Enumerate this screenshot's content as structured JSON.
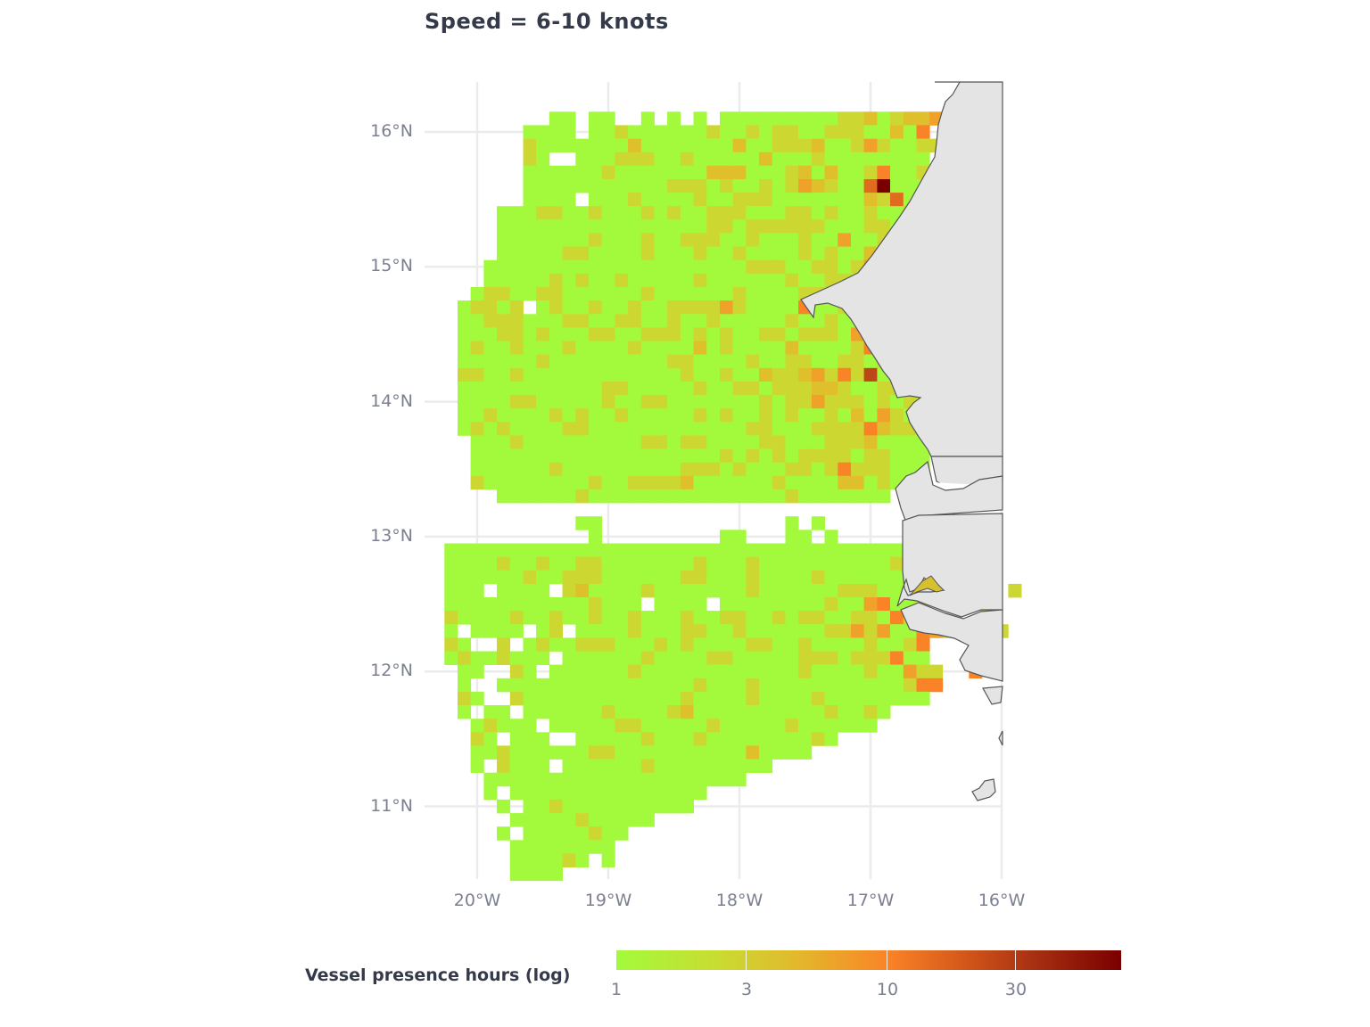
{
  "chart_data": {
    "type": "heatmap",
    "title": "Speed = 6-10 knots",
    "xlabel": "",
    "ylabel": "",
    "x_ticks": [
      "20°W",
      "19°W",
      "18°W",
      "17°W",
      "16°W"
    ],
    "y_ticks": [
      "16°N",
      "15°N",
      "14°N",
      "13°N",
      "12°N",
      "11°N"
    ],
    "xlim": [
      -20.4,
      -16.0
    ],
    "ylim": [
      10.4,
      16.4
    ],
    "cell_size_deg": 0.1,
    "grid": true,
    "legend": {
      "title": "Vessel presence hours (log)",
      "scale": "log",
      "breaks": [
        "1",
        "3",
        "10",
        "30"
      ],
      "range": [
        1,
        60
      ],
      "position": "bottom",
      "colors": [
        "#a3fa3c",
        "#ccd831",
        "#e0c02c",
        "#efa12a",
        "#fa8327",
        "#e06b1f",
        "#bc4716",
        "#7a0000"
      ]
    },
    "level_key": {
      "g": "~1 h",
      "y": "~1.5-2 h",
      "Y": "~2.5-3 h",
      "o": "~4-5 h",
      "O": "~8-10 h",
      "r": "~12-15 h",
      "R": "~20-30 h",
      "D": "~60 h"
    },
    "grid_origin": {
      "lon_left": -20.25,
      "lat_top": 16.15
    },
    "rows": [
      "........gg.gg..g.g.g.gggggggggyyYgyYYo...",
      "......gggg.ggyggggggyggygyyggyyyggYgOg...",
      "......ygggggggYgggggggYggyyyYggyoyggyy...",
      "......yg..gggyyyggygggggYgggyggggggggg....",
      "......ggggggygggggggYYYgggyYgYggyOggyg....",
      "......gggggggggggyyygyggygyoYyggrDggggyg..",
      "......gggg.gggyggggyggyyygggggggYyrggyg...",
      "....gggyyggygggygyggyyygggyygyggyggy......",
      "....ggggggggggggggggyygyyyyyygggyygggg....",
      "....gggggggygggyggyyyggygggyggoggyyygy.....",
      "....gggggyyggggygggyggyggggygyggYgrgyg.....",
      "...ggggggggggggggggggggyyyggyygyogRgy.......",
      "...gggggygyggygggggyggggggyggyygYygyog......",
      "..gyyggyyggggggyggggggyggggyyggYgyyoO........",
      ".gyygy.gyggyggyggyyyyoyggggOggyyooRr.........",
      ".ggyyygggyyggyyggyggygggggyggyggggyyyR.......",
      ".gggyygygggyyggyyygygyggyygyyygoyyyRygg......",
      ".gyggygggyggggyggggYgyggggYggggyOyygggg......",
      ".ggggggygggggggggyyggggyggyyggyygyyggg.......",
      ".yyggyggggggggggggyggyggYyyYoyOyRgrgg........",
      ".gggggggggggyygggggyggyygyyyYYyggyyrOy.......",
      ".ggggyygggggyggyygggggggygyyoyyygygyyygg.....",
      ".ggyggggygyggygggggygyggygyggygYgoyggygyg....",
      ".gygyggggyyggggggggggggyygggyyyyOYyyyyggg...",
      "..gggygggggggggyygyyggggyygggyyyYggggygyygg.",
      "..gggggggggggggggggggygygygyyyygyyggggggyg...",
      "..ggggggygggggggggyyygygggyygyOyyygggggyg....",
      "..yggggggggyggyyyyYggggggyggggYYgygggggg.....",
      "....ggggggygggggggggggggggyggggggg..........",
      "..........................................."
    ],
    "rows_south": [
      "..........gg..............g.g..",
      "...........g.........gg...gg.g..",
      "gggggggggggggggggggggggggggggggggggggggggg",
      "ggggyggyggyygggggggygggyggggggggggygggyRgg.",
      "ggggggyggyyyggggggyygggyggggyggggggyoYgggg",
      "ggg.gggg.yYggggygggggggyggggggyyyggoggoyyggy",
      "gggggggggggyggg.gggg.ggggggggyggoOggyggyyy",
      "yggggyggyggyggygggyggyyggygyyggyygOyygggg",
      "g.gggg.gy.ggggygggyyggyggggggyyoyoggOoygggy",
      "yg..y.gyggyyygggygyggggyyggyggggyggyOgggg.",
      "gyggyggg.ggggggyggggyygggggyyygyyyOgggg...",
      ".gg..yg.ggggggyggggggggggggyggggyggoyyggO.",
      ".g..gggggggggggggggygggygggggggggggyOOgg..",
      ".yg..yggggggggggggyggggyggggyggggggggg.....",
      ".g.gg.ggggggyggggyYggggggggggyggyg.........",
      "..gyggg.gggggyygggggygggggygggggg..........",
      "..yg.ggg..gggggygggyggggggggyg............",
      "..ggyggggggyyggggggggggYgggg..............",
      "..g.yggg.ggggggyggggggggg.................",
      "...gggggggggggggggggggg....................",
      "...g.ggggggggggggggg.......................",
      "....g.ggygggggggggg........................",
      ".....gggggyggggg...........................",
      "....g.gggggygg.............................",
      ".....gggggggg..............................",
      ".....ggggyg.g..............................",
      ".....gggg.................................."
    ],
    "rows_south_origin": {
      "lon_left": -20.25,
      "lat_top": 13.15
    }
  },
  "plot": {
    "title": "Speed = 6-10 knots",
    "legend_title": "Vessel presence hours (log)",
    "legend_labels": [
      "1",
      "3",
      "10",
      "30"
    ],
    "x_tick_labels": [
      "20°W",
      "19°W",
      "18°W",
      "17°W",
      "16°W"
    ],
    "y_tick_labels": [
      "16°N",
      "15°N",
      "14°N",
      "13°N",
      "12°N",
      "11°N"
    ]
  }
}
